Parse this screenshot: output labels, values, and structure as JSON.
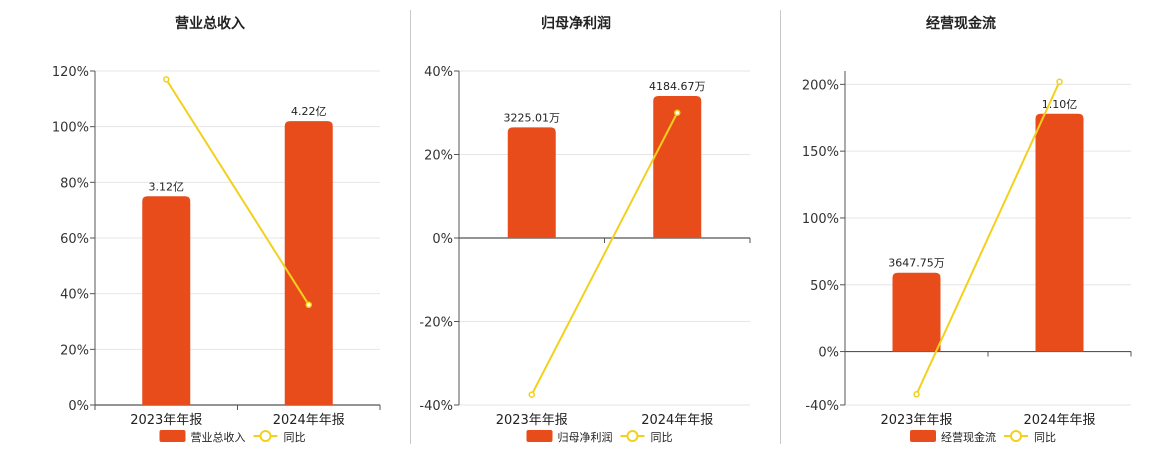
{
  "colors": {
    "bar": "#E84C1A",
    "line": "#F2D11E",
    "grid": "#e6e6e6",
    "axis": "#555555"
  },
  "chart_data": [
    {
      "type": "bar",
      "title": "营业总收入",
      "categories": [
        "2023年年报",
        "2024年年报"
      ],
      "bar_series": {
        "name": "营业总收入",
        "values_pct": [
          75,
          102
        ],
        "labels": [
          "3.12亿",
          "4.22亿"
        ]
      },
      "line_series": {
        "name": "同比",
        "values_pct": [
          117,
          36
        ]
      },
      "ylim": [
        0,
        120
      ],
      "yticks": [
        0,
        20,
        40,
        60,
        80,
        100,
        120
      ],
      "ytick_labels": [
        "0%",
        "20%",
        "40%",
        "60%",
        "80%",
        "100%",
        "120%"
      ],
      "grid": true
    },
    {
      "type": "bar",
      "title": "归母净利润",
      "categories": [
        "2023年年报",
        "2024年年报"
      ],
      "bar_series": {
        "name": "归母净利润",
        "values_pct": [
          26.5,
          34
        ],
        "labels": [
          "3225.01万",
          "4184.67万"
        ]
      },
      "line_series": {
        "name": "同比",
        "values_pct": [
          -37.5,
          30
        ]
      },
      "ylim": [
        -40,
        40
      ],
      "yticks": [
        -40,
        -20,
        0,
        20,
        40
      ],
      "ytick_labels": [
        "-40%",
        "-20%",
        "0%",
        "20%",
        "40%"
      ],
      "grid": true
    },
    {
      "type": "bar",
      "title": "经营现金流",
      "categories": [
        "2023年年报",
        "2024年年报"
      ],
      "bar_series": {
        "name": "经营现金流",
        "values_pct": [
          59,
          178
        ],
        "labels": [
          "3647.75万",
          "1.10亿"
        ]
      },
      "line_series": {
        "name": "同比",
        "values_pct": [
          -32,
          202
        ]
      },
      "ylim": [
        -40,
        210
      ],
      "yticks": [
        -40,
        0,
        50,
        100,
        150,
        200
      ],
      "ytick_labels": [
        "-40%",
        "0%",
        "50%",
        "100%",
        "150%",
        "200%"
      ],
      "grid": true
    }
  ]
}
